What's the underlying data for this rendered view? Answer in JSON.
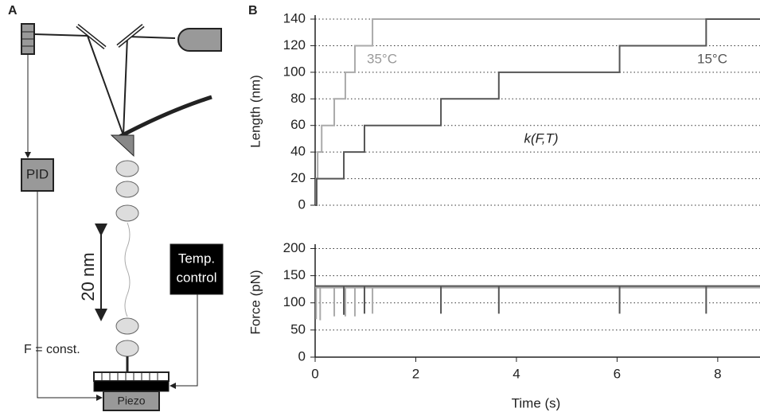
{
  "panel_labels": [
    "A",
    "B"
  ],
  "diagram": {
    "pid": "PID",
    "temp_control": [
      "Temp.",
      "control"
    ],
    "scale": "20 nm",
    "force_label": "F = const.",
    "piezo": "Piezo"
  },
  "chart_data": [
    {
      "type": "line",
      "ylabel": "Length (nm)",
      "xlim": [
        0,
        8.84
      ],
      "ylim": [
        0,
        143
      ],
      "yticks": [
        0,
        20,
        40,
        60,
        80,
        100,
        120,
        140
      ],
      "grid": true,
      "annotations": [
        "35°C",
        "15°C",
        "k(F,T)"
      ],
      "series": [
        {
          "name": "35°C",
          "color": "#aaaaaa",
          "x": [
            0,
            0.02,
            0.02,
            0.05,
            0.05,
            0.13,
            0.13,
            0.38,
            0.38,
            0.6,
            0.6,
            0.79,
            0.79,
            1.14,
            1.14,
            8.84
          ],
          "values": [
            0,
            0,
            20,
            20,
            40,
            40,
            60,
            60,
            80,
            80,
            100,
            100,
            120,
            120,
            140,
            140
          ]
        },
        {
          "name": "15°C",
          "color": "#555555",
          "x": [
            0,
            0.03,
            0.03,
            0.57,
            0.57,
            0.98,
            0.98,
            2.5,
            2.5,
            3.65,
            3.65,
            6.05,
            6.05,
            7.77,
            7.77,
            8.84
          ],
          "values": [
            0,
            0,
            20,
            20,
            40,
            40,
            60,
            60,
            80,
            80,
            100,
            100,
            120,
            120,
            140,
            140
          ]
        }
      ]
    },
    {
      "type": "line",
      "ylabel": "Force (pN)",
      "xlabel": "Time (s)",
      "xlim": [
        0,
        8.84
      ],
      "ylim": [
        0,
        208
      ],
      "xticks": [
        0,
        2,
        4,
        6,
        8
      ],
      "yticks": [
        0,
        50,
        100,
        150,
        200
      ],
      "grid": true,
      "series": [
        {
          "name": "35°C",
          "color": "#aaaaaa",
          "x": [
            0,
            0.02,
            0.02,
            0.02,
            0.1,
            0.1,
            0.1,
            0.38,
            0.38,
            0.38,
            0.6,
            0.6,
            0.6,
            0.79,
            0.79,
            0.79,
            1.14,
            1.14,
            1.14,
            8.84
          ],
          "values": [
            128,
            128,
            70,
            128,
            128,
            68,
            128,
            128,
            75,
            128,
            128,
            75,
            128,
            128,
            75,
            128,
            128,
            80,
            128,
            128
          ]
        },
        {
          "name": "15°C",
          "color": "#555555",
          "x": [
            0,
            0.57,
            0.57,
            0.57,
            0.98,
            0.98,
            0.98,
            2.5,
            2.5,
            2.5,
            3.65,
            3.65,
            3.65,
            6.05,
            6.05,
            6.05,
            7.77,
            7.77,
            7.77,
            8.84
          ],
          "values": [
            131,
            131,
            78,
            131,
            131,
            80,
            131,
            131,
            80,
            131,
            131,
            80,
            131,
            131,
            80,
            131,
            131,
            80,
            131,
            131
          ]
        }
      ]
    }
  ]
}
